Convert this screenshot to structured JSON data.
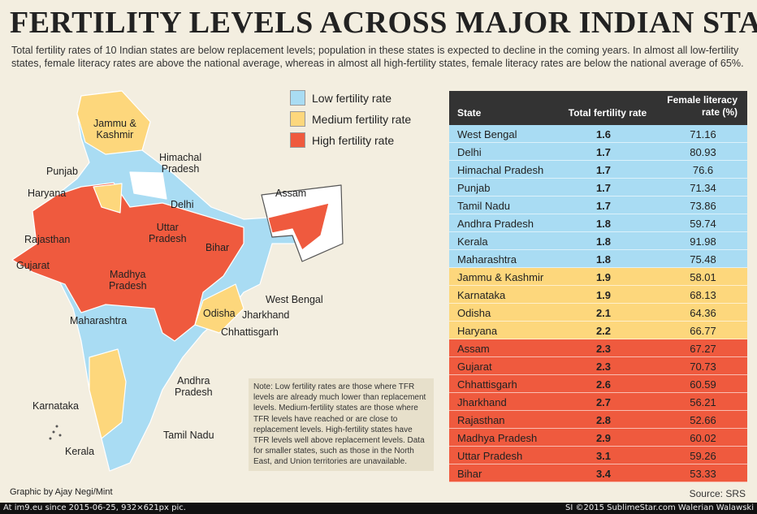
{
  "header": {
    "title": "FERTILITY LEVELS ACROSS MAJOR INDIAN STATES",
    "subtitle": "Total fertility rates of 10 Indian states are below replacement levels; population in these states is expected to decline in the coming years. In almost all low-fertility states, female literacy rates are above the national average, whereas in almost all high-fertility states, female literacy rates are below the national average of 65%."
  },
  "legend": [
    {
      "label": "Low fertility rate",
      "color": "#a9dcf3"
    },
    {
      "label": "Medium fertility rate",
      "color": "#fdd77c"
    },
    {
      "label": "High fertility rate",
      "color": "#ef5a3e"
    }
  ],
  "map": {
    "labels": [
      {
        "lines": [
          "Jammu &",
          "Kashmir"
        ]
      },
      {
        "lines": [
          "Himachal",
          "Pradesh"
        ]
      },
      {
        "lines": [
          "Punjab"
        ]
      },
      {
        "lines": [
          "Haryana"
        ]
      },
      {
        "lines": [
          "Delhi"
        ]
      },
      {
        "lines": [
          "Assam"
        ]
      },
      {
        "lines": [
          "Rajasthan"
        ]
      },
      {
        "lines": [
          "Uttar",
          "Pradesh"
        ]
      },
      {
        "lines": [
          "Bihar"
        ]
      },
      {
        "lines": [
          "Gujarat"
        ]
      },
      {
        "lines": [
          "Madhya",
          "Pradesh"
        ]
      },
      {
        "lines": [
          "West Bengal"
        ]
      },
      {
        "lines": [
          "Jharkhand"
        ]
      },
      {
        "lines": [
          "Odisha"
        ]
      },
      {
        "lines": [
          "Chhattisgarh"
        ]
      },
      {
        "lines": [
          "Maharashtra"
        ]
      },
      {
        "lines": [
          "Andhra",
          "Pradesh"
        ]
      },
      {
        "lines": [
          "Karnataka"
        ]
      },
      {
        "lines": [
          "Tamil Nadu"
        ]
      },
      {
        "lines": [
          "Kerala"
        ]
      }
    ]
  },
  "note": "Note: Low fertility rates are those where TFR levels are already much lower than replacement levels. Medium-fertility states are those where TFR levels have reached or are close to replacement levels. High-fertility states have TFR levels well above replacement levels. Data for smaller states, such as those in the North East, and Union territories are unavailable.",
  "table": {
    "columns": [
      "State",
      "Total fertility rate",
      "Female literacy rate (%)"
    ],
    "sections": [
      {
        "color": "#a9dcf3",
        "rows": [
          [
            "West Bengal",
            1.6,
            71.16
          ],
          [
            "Delhi",
            1.7,
            80.93
          ],
          [
            "Himachal Pradesh",
            1.7,
            76.6
          ],
          [
            "Punjab",
            1.7,
            71.34
          ],
          [
            "Tamil Nadu",
            1.7,
            73.86
          ],
          [
            "Andhra Pradesh",
            1.8,
            59.74
          ],
          [
            "Kerala",
            1.8,
            91.98
          ],
          [
            "Maharashtra",
            1.8,
            75.48
          ]
        ]
      },
      {
        "color": "#fdd77c",
        "rows": [
          [
            "Jammu & Kashmir",
            1.9,
            58.01
          ],
          [
            "Karnataka",
            1.9,
            68.13
          ],
          [
            "Odisha",
            2.1,
            64.36
          ],
          [
            "Haryana",
            2.2,
            66.77
          ]
        ]
      },
      {
        "color": "#ef5a3e",
        "rows": [
          [
            "Assam",
            2.3,
            67.27
          ],
          [
            "Gujarat",
            2.3,
            70.73
          ],
          [
            "Chhattisgarh",
            2.6,
            60.59
          ],
          [
            "Jharkhand",
            2.7,
            56.21
          ],
          [
            "Rajasthan",
            2.8,
            52.66
          ],
          [
            "Madhya Pradesh",
            2.9,
            60.02
          ],
          [
            "Uttar Pradesh",
            3.1,
            59.26
          ],
          [
            "Bihar",
            3.4,
            53.33
          ]
        ]
      }
    ]
  },
  "credit": "Graphic by Ajay Negi/Mint",
  "source": "Source: SRS",
  "footer": {
    "left": "At im9.eu since 2015-06-25, 932×621px pic.",
    "right": "SI ©2015 SublimeStar.com Walerian Walawski"
  }
}
